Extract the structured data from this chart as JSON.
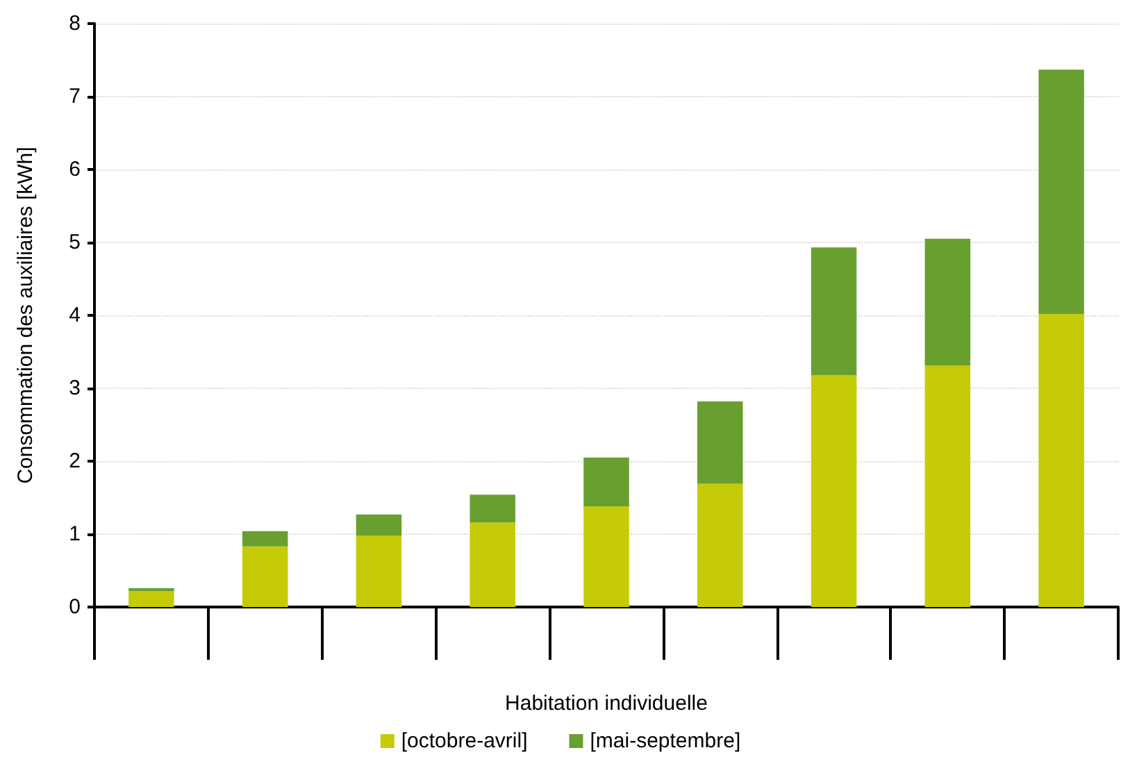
{
  "chart_data": {
    "type": "bar",
    "stacked": true,
    "xlabel": "Habitation individuelle",
    "ylabel": "Consommation des auxiliaires [kWh]",
    "categories": [
      null,
      null,
      null,
      null,
      null,
      null,
      null,
      null,
      null
    ],
    "series": [
      {
        "name": "[octobre-avril]",
        "color": "#c5cb07",
        "values": [
          0.22,
          0.83,
          0.98,
          1.16,
          1.38,
          1.69,
          3.18,
          3.31,
          4.02
        ]
      },
      {
        "name": "[mai-septembre]",
        "color": "#68a02f",
        "values": [
          0.04,
          0.21,
          0.29,
          0.38,
          0.67,
          1.13,
          1.75,
          1.74,
          3.35
        ]
      }
    ],
    "ylim": [
      0,
      8
    ],
    "yticks": [
      0,
      1,
      2,
      3,
      4,
      5,
      6,
      7,
      8
    ],
    "grid": "y",
    "legend": "bottom"
  }
}
